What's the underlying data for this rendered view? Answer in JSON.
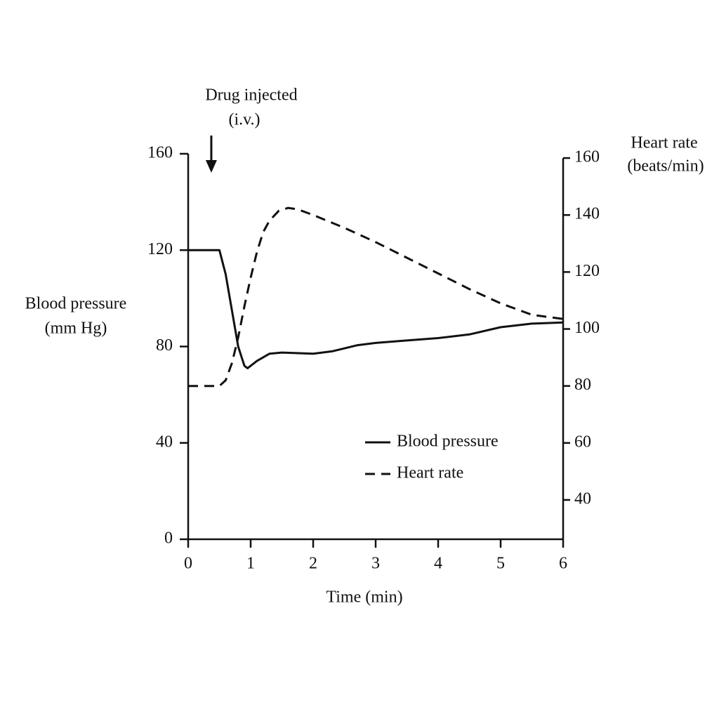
{
  "chart_data": {
    "type": "line",
    "x_label": "Time (min)",
    "y_label": [
      "Blood pressure",
      "(mm Hg)"
    ],
    "y2_label": [
      "Heart rate",
      "(beats/min)"
    ],
    "annotation": {
      "text": [
        "Drug injected",
        "(i.v.)"
      ],
      "x": 0.37
    },
    "xlim": [
      0,
      6
    ],
    "xticks": [
      0,
      1,
      2,
      3,
      4,
      5,
      6
    ],
    "ylim": [
      0,
      160
    ],
    "yticks": [
      0,
      40,
      80,
      120,
      160
    ],
    "y2lim": [
      26.2,
      161.5
    ],
    "y2ticks": [
      40,
      60,
      80,
      100,
      120,
      140,
      160
    ],
    "legend": "lower right",
    "series": [
      {
        "name": "Blood pressure",
        "color": "#111111",
        "dash": "solid",
        "x": [
          0,
          0.5,
          0.6,
          0.7,
          0.8,
          0.9,
          0.95,
          1.1,
          1.3,
          1.5,
          2,
          2.3,
          2.7,
          3,
          3.5,
          4,
          4.5,
          5,
          5.5,
          6
        ],
        "values": [
          120,
          120,
          110,
          95,
          80,
          72,
          71,
          74,
          77,
          77.5,
          77,
          78,
          80.5,
          81.5,
          82.5,
          83.5,
          85,
          88,
          89.5,
          90
        ]
      },
      {
        "name": "Heart rate",
        "color": "#111111",
        "dash": "dashed",
        "axis": "y2",
        "x": [
          0,
          0.5,
          0.6,
          0.7,
          0.8,
          0.9,
          1,
          1.1,
          1.2,
          1.3,
          1.45,
          1.6,
          1.75,
          2,
          2.5,
          3,
          3.5,
          4,
          4.5,
          5,
          5.5,
          6
        ],
        "values": [
          80,
          80,
          82,
          88,
          97,
          108,
          118,
          127,
          134,
          138,
          141.5,
          142.5,
          142,
          140,
          135.5,
          130.5,
          125,
          119.5,
          114,
          109,
          105,
          103.5
        ]
      }
    ]
  }
}
